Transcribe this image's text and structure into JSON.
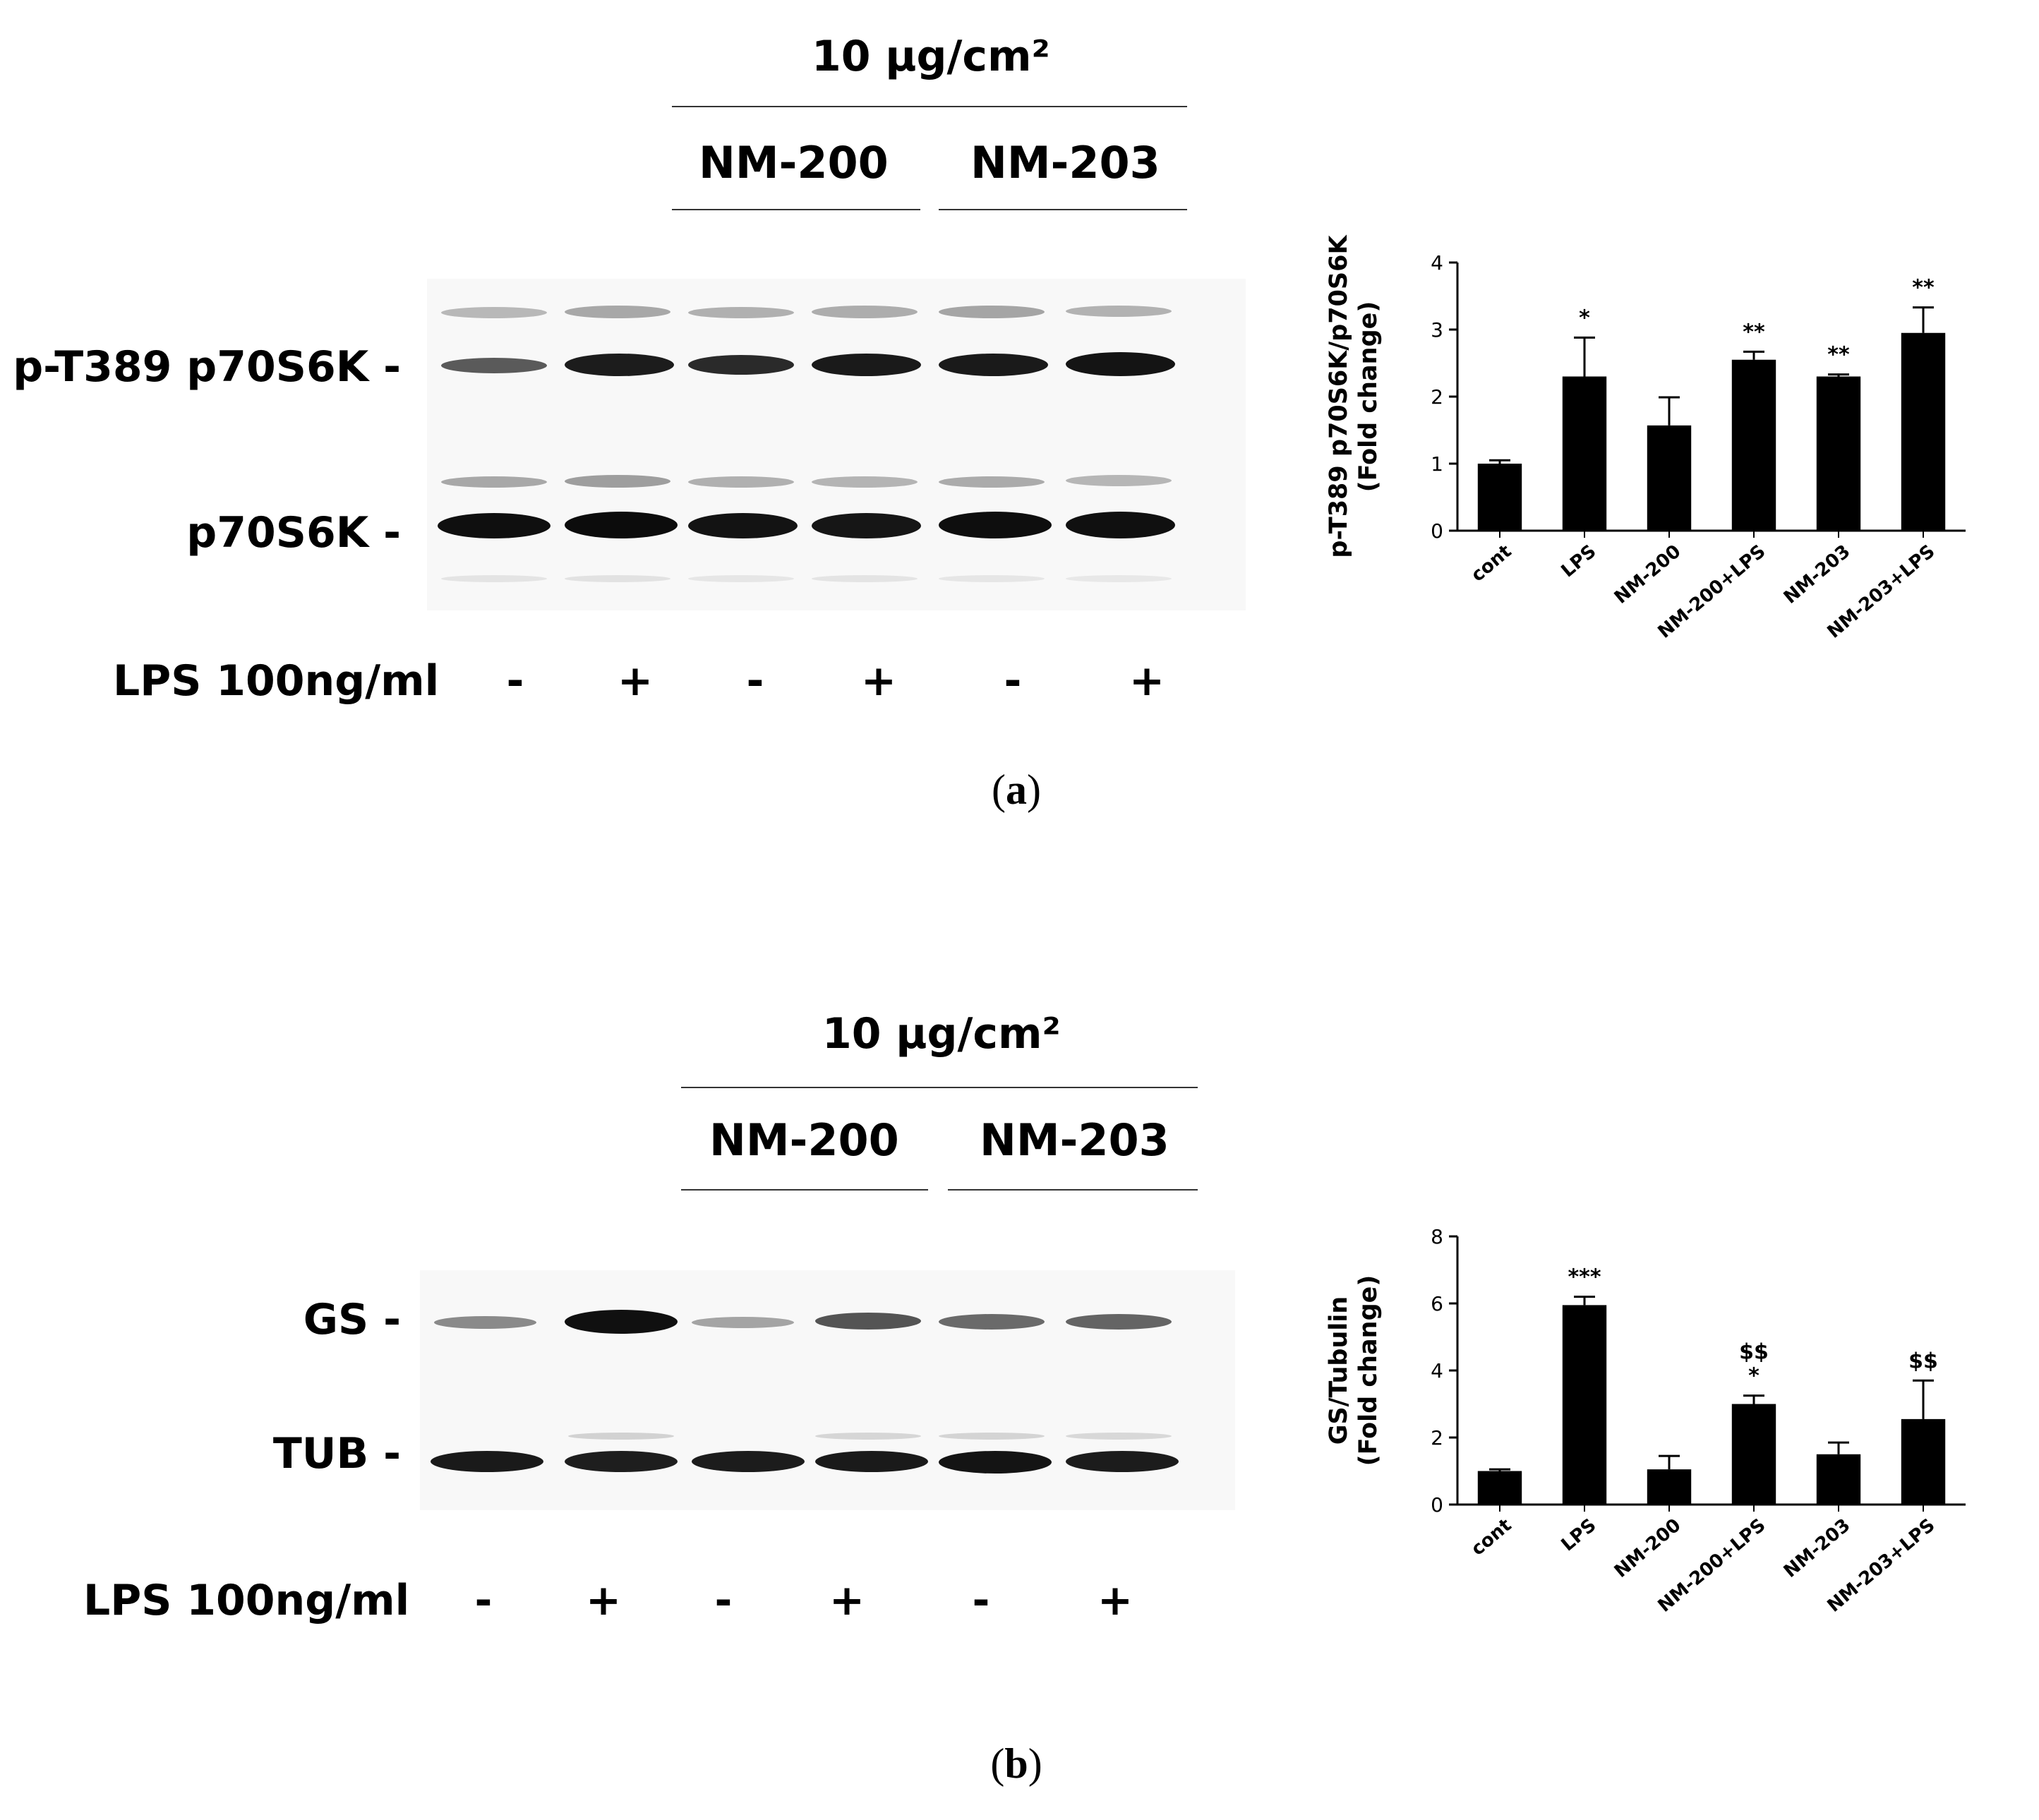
{
  "panels": [
    {
      "id": "a",
      "caption_letter": "a",
      "concentration": "10 μg/cm²",
      "groups": [
        "NM-200",
        "NM-203"
      ],
      "proteins": [
        "p-T389 p70S6K -",
        "p70S6K -"
      ],
      "lps_label": "LPS 100ng/ml",
      "lps_signs": [
        "-",
        "+",
        "-",
        "+",
        "-",
        "+"
      ]
    },
    {
      "id": "b",
      "caption_letter": "b",
      "concentration": "10 μg/cm²",
      "groups": [
        "NM-200",
        "NM-203"
      ],
      "proteins": [
        "GS -",
        "TUB -"
      ],
      "lps_label": "LPS 100ng/ml",
      "lps_signs": [
        "-",
        "+",
        "-",
        "+",
        "-",
        "+"
      ]
    }
  ],
  "chart_data": [
    {
      "type": "bar",
      "title": "",
      "categories": [
        "cont",
        "LPS",
        "NM-200",
        "NM-200+LPS",
        "NM-203",
        "NM-203+LPS"
      ],
      "values": [
        1.0,
        2.3,
        1.57,
        2.55,
        2.3,
        2.95
      ],
      "errors": [
        0.05,
        0.58,
        0.42,
        0.12,
        0.03,
        0.38
      ],
      "annotations": [
        [],
        [
          "*"
        ],
        [],
        [
          "**"
        ],
        [
          "**"
        ],
        [
          "**"
        ]
      ],
      "ylabel_lines": [
        "p-T389 p70S6K/p70S6K",
        "(Fold change)"
      ],
      "xlabel": "",
      "ylim": [
        0,
        4
      ],
      "yticks": [
        0,
        1,
        2,
        3,
        4
      ],
      "bar_color": "#000000"
    },
    {
      "type": "bar",
      "title": "",
      "categories": [
        "cont",
        "LPS",
        "NM-200",
        "NM-200+LPS",
        "NM-203",
        "NM-203+LPS"
      ],
      "values": [
        1.0,
        5.95,
        1.05,
        3.0,
        1.5,
        2.55
      ],
      "errors": [
        0.05,
        0.25,
        0.4,
        0.25,
        0.35,
        1.15
      ],
      "annotations": [
        [],
        [
          "***"
        ],
        [],
        [
          "$$",
          "*"
        ],
        [],
        [
          "$$"
        ]
      ],
      "ylabel_lines": [
        "GS/Tubulin",
        "(Fold change)"
      ],
      "xlabel": "",
      "ylim": [
        0,
        8
      ],
      "yticks": [
        0,
        2,
        4,
        6,
        8
      ],
      "bar_color": "#000000"
    }
  ]
}
